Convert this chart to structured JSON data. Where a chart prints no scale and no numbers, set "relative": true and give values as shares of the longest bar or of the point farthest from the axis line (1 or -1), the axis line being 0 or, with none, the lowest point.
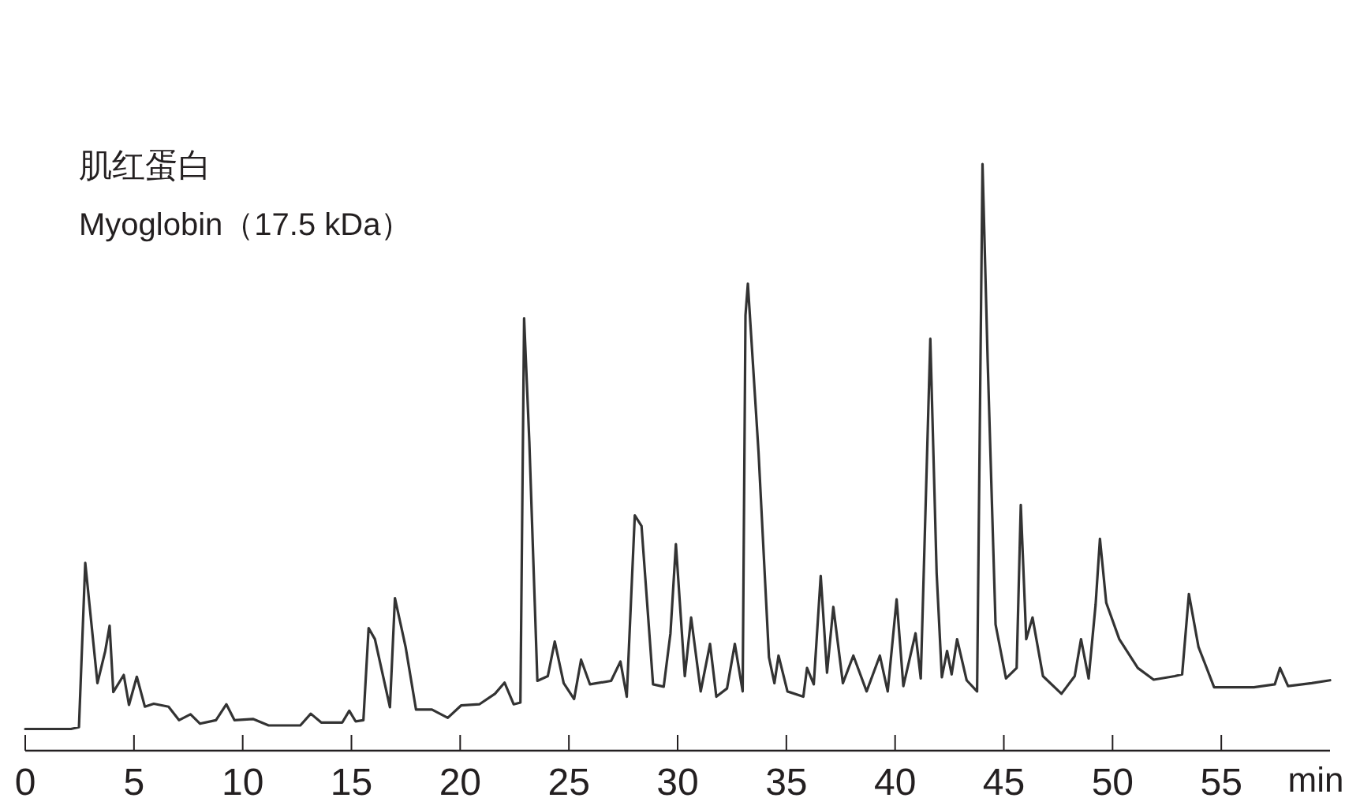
{
  "chart_data": {
    "type": "line",
    "title": "肌红蛋白",
    "subtitle": "Myoglobin（17.5 kDa）",
    "xlabel": "min",
    "relative": true,
    "xlim": [
      0,
      60
    ],
    "xticks": [
      0,
      5,
      10,
      15,
      20,
      25,
      30,
      35,
      40,
      45,
      50,
      55
    ],
    "series": [
      {
        "color": "#333333",
        "x": [
          0,
          2.1,
          2.47,
          2.76,
          3.32,
          3.68,
          3.88,
          4.05,
          4.53,
          4.77,
          5.13,
          5.5,
          5.91,
          6.59,
          7.07,
          7.6,
          8.04,
          8.77,
          9.25,
          9.62,
          10.47,
          11.19,
          12.65,
          13.13,
          13.61,
          14.58,
          14.9,
          15.19,
          15.55,
          15.79,
          16.08,
          16.77,
          17.0,
          17.49,
          17.97,
          18.7,
          19.43,
          20.04,
          20.88,
          21.6,
          22.04,
          22.46,
          22.77,
          22.94,
          23.18,
          23.55,
          24.03,
          24.35,
          24.76,
          25.24,
          25.56,
          25.97,
          26.94,
          27.37,
          27.66,
          28.03,
          28.34,
          28.87,
          29.36,
          29.67,
          29.92,
          30.33,
          30.62,
          31.06,
          31.49,
          31.78,
          32.27,
          32.63,
          32.99,
          33.12,
          33.23,
          33.72,
          34.2,
          34.45,
          34.64,
          35.05,
          35.78,
          35.95,
          36.26,
          36.58,
          36.87,
          37.16,
          37.6,
          38.08,
          38.69,
          39.3,
          39.66,
          40.07,
          40.38,
          40.94,
          41.18,
          41.62,
          41.91,
          42.15,
          42.39,
          42.6,
          42.85,
          43.29,
          43.77,
          44.02,
          44.26,
          44.62,
          45.1,
          45.59,
          45.78,
          46.03,
          46.32,
          46.8,
          47.65,
          48.26,
          48.55,
          48.9,
          49.22,
          49.42,
          49.71,
          50.31,
          51.16,
          51.89,
          52.86,
          53.2,
          53.51,
          53.95,
          54.67,
          56.5,
          57.46,
          57.7,
          58.07,
          59.16,
          60.0
        ],
        "values": [
          0.037,
          0.037,
          0.04,
          0.32,
          0.115,
          0.17,
          0.213,
          0.1,
          0.129,
          0.078,
          0.126,
          0.075,
          0.08,
          0.075,
          0.052,
          0.062,
          0.046,
          0.052,
          0.079,
          0.052,
          0.054,
          0.043,
          0.043,
          0.063,
          0.048,
          0.048,
          0.068,
          0.05,
          0.052,
          0.209,
          0.19,
          0.074,
          0.26,
          0.177,
          0.07,
          0.07,
          0.056,
          0.077,
          0.079,
          0.097,
          0.116,
          0.079,
          0.082,
          0.737,
          0.527,
          0.119,
          0.127,
          0.186,
          0.115,
          0.088,
          0.155,
          0.113,
          0.119,
          0.152,
          0.092,
          0.401,
          0.383,
          0.113,
          0.109,
          0.2,
          0.352,
          0.127,
          0.227,
          0.101,
          0.182,
          0.092,
          0.106,
          0.182,
          0.101,
          0.742,
          0.796,
          0.509,
          0.159,
          0.115,
          0.162,
          0.101,
          0.092,
          0.141,
          0.113,
          0.298,
          0.133,
          0.245,
          0.115,
          0.162,
          0.101,
          0.162,
          0.101,
          0.258,
          0.11,
          0.2,
          0.123,
          0.702,
          0.303,
          0.125,
          0.17,
          0.13,
          0.19,
          0.12,
          0.101,
          1,
          0.661,
          0.215,
          0.123,
          0.141,
          0.419,
          0.19,
          0.227,
          0.127,
          0.097,
          0.127,
          0.19,
          0.123,
          0.249,
          0.361,
          0.252,
          0.19,
          0.141,
          0.121,
          0.127,
          0.13,
          0.267,
          0.177,
          0.108,
          0.108,
          0.113,
          0.141,
          0.11,
          0.115,
          0.12
        ]
      }
    ]
  }
}
